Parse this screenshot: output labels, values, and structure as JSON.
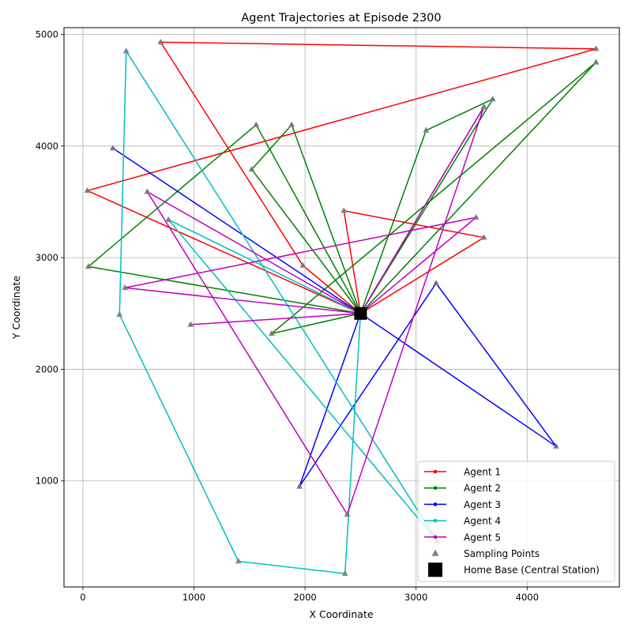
{
  "chart_data": {
    "type": "line",
    "title": "Agent Trajectories at Episode 2300",
    "xlabel": "X Coordinate",
    "ylabel": "Y Coordinate",
    "xlim": [
      -170,
      4830
    ],
    "ylim": [
      50,
      5060
    ],
    "x_ticks": [
      0,
      1000,
      2000,
      3000,
      4000
    ],
    "y_ticks": [
      1000,
      2000,
      3000,
      4000,
      5000
    ],
    "grid": true,
    "legend_position": "lower-right",
    "home_base": {
      "name": "Home Base (Central Station)",
      "x": 2500,
      "y": 2500,
      "color": "#000000"
    },
    "sampling_points_label": "Sampling Points",
    "sampling_color": "#808080",
    "series": [
      {
        "name": "Agent 1",
        "color": "#ff0000",
        "points": [
          [
            2500,
            2500
          ],
          [
            1980,
            2930
          ],
          [
            700,
            4930
          ],
          [
            4620,
            4870
          ],
          [
            40,
            3600
          ],
          [
            2500,
            2500
          ],
          [
            3610,
            3180
          ],
          [
            2350,
            3420
          ],
          [
            2500,
            2500
          ]
        ]
      },
      {
        "name": "Agent 2",
        "color": "#008000",
        "points": [
          [
            2500,
            2500
          ],
          [
            1520,
            3790
          ],
          [
            1880,
            4190
          ],
          [
            2500,
            2500
          ],
          [
            3090,
            4140
          ],
          [
            3690,
            4420
          ],
          [
            2500,
            2500
          ],
          [
            4620,
            4750
          ],
          [
            1700,
            2320
          ],
          [
            2500,
            2500
          ],
          [
            1560,
            4190
          ],
          [
            50,
            2920
          ],
          [
            2500,
            2500
          ],
          [
            3610,
            4350
          ],
          [
            2500,
            2500
          ]
        ]
      },
      {
        "name": "Agent 3",
        "color": "#0000ff",
        "points": [
          [
            2500,
            2500
          ],
          [
            4260,
            1310
          ],
          [
            3180,
            2770
          ],
          [
            1950,
            950
          ],
          [
            2500,
            2500
          ],
          [
            270,
            3980
          ],
          [
            2500,
            2500
          ]
        ]
      },
      {
        "name": "Agent 4",
        "color": "#00bfbf",
        "points": [
          [
            2500,
            2500
          ],
          [
            770,
            3340
          ],
          [
            3190,
            460
          ],
          [
            390,
            4850
          ],
          [
            330,
            2490
          ],
          [
            1400,
            280
          ],
          [
            2360,
            170
          ],
          [
            2500,
            2500
          ]
        ]
      },
      {
        "name": "Agent 5",
        "color": "#bf00bf",
        "points": [
          [
            2500,
            2500
          ],
          [
            3540,
            3360
          ],
          [
            380,
            2730
          ],
          [
            2500,
            2500
          ],
          [
            580,
            3590
          ],
          [
            2380,
            700
          ],
          [
            3610,
            4350
          ],
          [
            2500,
            2500
          ],
          [
            970,
            2400
          ],
          [
            2500,
            2500
          ]
        ]
      }
    ]
  }
}
